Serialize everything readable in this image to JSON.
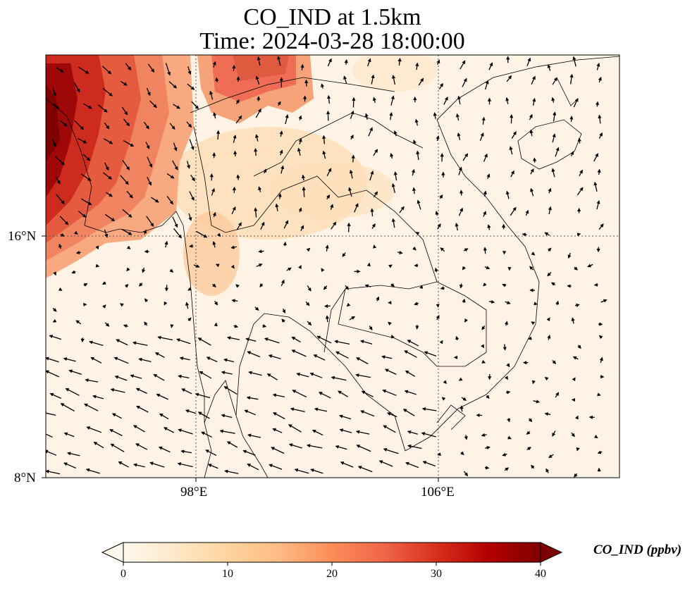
{
  "title": {
    "line1": "CO_IND at 1.5km",
    "line2": "Time: 2024-03-28 18:00:00"
  },
  "map": {
    "extent": {
      "lon_min": 93.0,
      "lon_max": 112.0,
      "lat_min": 8.0,
      "lat_max": 20.0
    },
    "variable": "CO_IND",
    "level": "1.5km",
    "colormap": [
      "#fff7ec",
      "#fee8c8",
      "#fdd49e",
      "#fdbb84",
      "#fc8d59",
      "#ef6548",
      "#d7301f",
      "#b30000",
      "#7f0000"
    ],
    "gridlines": {
      "lons": [
        98,
        106
      ],
      "lats": [
        16
      ],
      "style": "dotted"
    }
  },
  "axes": {
    "x_ticks": [
      "98°E",
      "106°E"
    ],
    "y_ticks": [
      "16°N",
      "8°N"
    ]
  },
  "colorbar": {
    "label": "CO_IND (ppbv)",
    "min": 0,
    "max": 40,
    "ticks": [
      "0",
      "10",
      "20",
      "30",
      "40"
    ],
    "extend": "both"
  }
}
